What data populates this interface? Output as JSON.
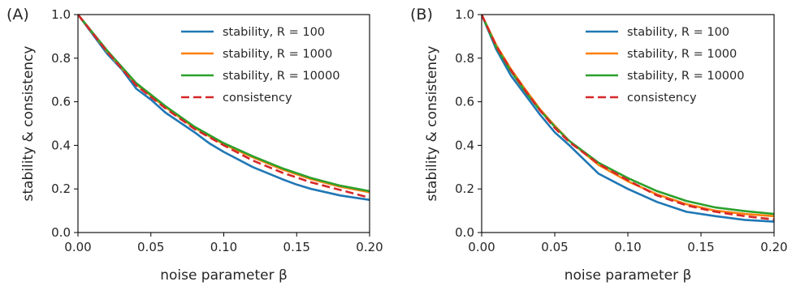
{
  "chart_data": [
    {
      "type": "line",
      "panel_label": "(A)",
      "xlabel": "noise parameter β",
      "ylabel": "stability & consistency",
      "xlim": [
        0.0,
        0.2
      ],
      "ylim": [
        0.0,
        1.0
      ],
      "xticks": [
        "0.00",
        "0.05",
        "0.10",
        "0.15",
        "0.20"
      ],
      "yticks": [
        "0.0",
        "0.2",
        "0.4",
        "0.6",
        "0.8",
        "1.0"
      ],
      "legend_position": "upper-right",
      "grid": false,
      "series": [
        {
          "name": "stability, R = 100",
          "color": "#1f77b4",
          "style": "solid",
          "x": [
            0,
            0.02,
            0.03,
            0.04,
            0.05,
            0.06,
            0.08,
            0.09,
            0.1,
            0.12,
            0.14,
            0.15,
            0.16,
            0.18,
            0.2
          ],
          "y": [
            1.0,
            0.82,
            0.75,
            0.66,
            0.61,
            0.55,
            0.46,
            0.41,
            0.37,
            0.3,
            0.245,
            0.22,
            0.2,
            0.17,
            0.15
          ]
        },
        {
          "name": "stability, R = 1000",
          "color": "#ff7f0e",
          "style": "solid",
          "x": [
            0,
            0.02,
            0.04,
            0.06,
            0.08,
            0.1,
            0.12,
            0.14,
            0.16,
            0.18,
            0.2
          ],
          "y": [
            1.0,
            0.83,
            0.68,
            0.575,
            0.48,
            0.405,
            0.345,
            0.29,
            0.245,
            0.21,
            0.185
          ]
        },
        {
          "name": "stability, R = 10000",
          "color": "#2ca02c",
          "style": "solid",
          "x": [
            0,
            0.02,
            0.04,
            0.06,
            0.08,
            0.1,
            0.12,
            0.14,
            0.16,
            0.18,
            0.2
          ],
          "y": [
            1.0,
            0.835,
            0.685,
            0.58,
            0.485,
            0.41,
            0.35,
            0.295,
            0.25,
            0.215,
            0.19
          ]
        },
        {
          "name": "consistency",
          "color": "#d62728",
          "style": "dashed",
          "x": [
            0,
            0.02,
            0.04,
            0.06,
            0.08,
            0.1,
            0.12,
            0.14,
            0.16,
            0.18,
            0.2
          ],
          "y": [
            1.0,
            0.83,
            0.675,
            0.57,
            0.475,
            0.4,
            0.33,
            0.275,
            0.23,
            0.195,
            0.16
          ]
        }
      ]
    },
    {
      "type": "line",
      "panel_label": "(B)",
      "xlabel": "noise parameter β",
      "ylabel": "stability & consistency",
      "xlim": [
        0.0,
        0.2
      ],
      "ylim": [
        0.0,
        1.0
      ],
      "xticks": [
        "0.00",
        "0.05",
        "0.10",
        "0.15",
        "0.20"
      ],
      "yticks": [
        "0.0",
        "0.2",
        "0.4",
        "0.6",
        "0.8",
        "1.0"
      ],
      "legend_position": "upper-right",
      "grid": false,
      "series": [
        {
          "name": "stability, R = 100",
          "color": "#1f77b4",
          "style": "solid",
          "x": [
            0,
            0.01,
            0.02,
            0.03,
            0.04,
            0.05,
            0.06,
            0.08,
            0.1,
            0.12,
            0.14,
            0.16,
            0.18,
            0.2
          ],
          "y": [
            1.0,
            0.84,
            0.72,
            0.63,
            0.54,
            0.46,
            0.4,
            0.27,
            0.2,
            0.14,
            0.095,
            0.075,
            0.058,
            0.05
          ]
        },
        {
          "name": "stability, R = 1000",
          "color": "#ff7f0e",
          "style": "solid",
          "x": [
            0,
            0.01,
            0.02,
            0.03,
            0.04,
            0.05,
            0.06,
            0.08,
            0.1,
            0.12,
            0.14,
            0.16,
            0.18,
            0.2
          ],
          "y": [
            1.0,
            0.86,
            0.75,
            0.655,
            0.565,
            0.49,
            0.42,
            0.31,
            0.235,
            0.175,
            0.13,
            0.1,
            0.085,
            0.075
          ]
        },
        {
          "name": "stability, R = 10000",
          "color": "#2ca02c",
          "style": "solid",
          "x": [
            0,
            0.01,
            0.02,
            0.03,
            0.04,
            0.05,
            0.06,
            0.08,
            0.1,
            0.12,
            0.14,
            0.16,
            0.18,
            0.2
          ],
          "y": [
            1.0,
            0.85,
            0.74,
            0.645,
            0.56,
            0.485,
            0.42,
            0.32,
            0.25,
            0.19,
            0.145,
            0.115,
            0.098,
            0.085
          ]
        },
        {
          "name": "consistency",
          "color": "#d62728",
          "style": "dashed",
          "x": [
            0,
            0.01,
            0.02,
            0.03,
            0.04,
            0.05,
            0.06,
            0.08,
            0.1,
            0.12,
            0.14,
            0.16,
            0.18,
            0.2
          ],
          "y": [
            1.0,
            0.855,
            0.745,
            0.65,
            0.56,
            0.48,
            0.415,
            0.315,
            0.24,
            0.17,
            0.125,
            0.095,
            0.075,
            0.06
          ]
        }
      ]
    }
  ]
}
